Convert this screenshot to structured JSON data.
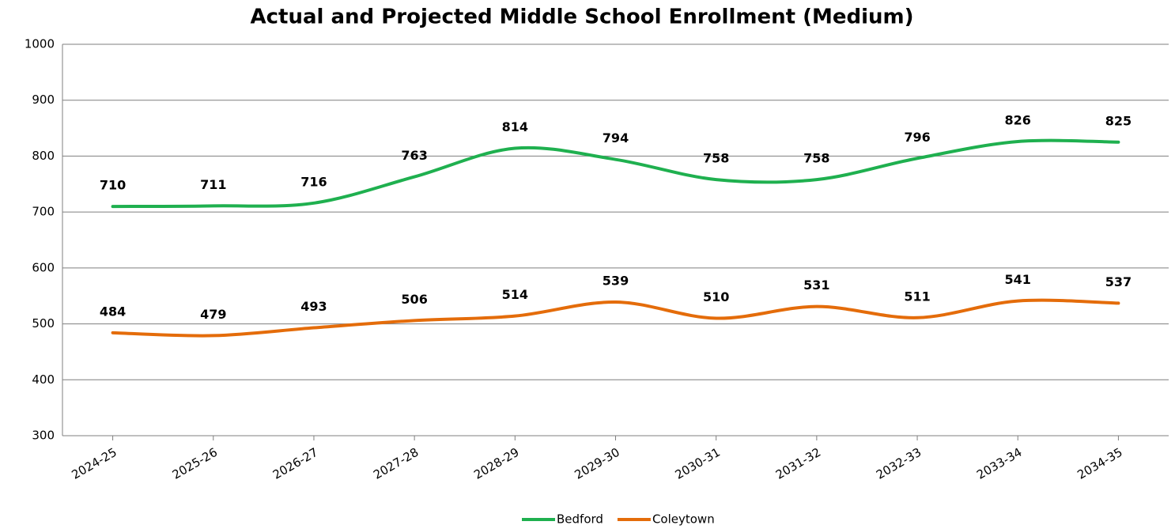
{
  "chart_data": {
    "type": "line",
    "title": "Actual and Projected Middle School Enrollment (Medium)",
    "categories": [
      "2024-25",
      "2025-26",
      "2026-27",
      "2027-28",
      "2028-29",
      "2029-30",
      "2030-31",
      "2031-32",
      "2032-33",
      "2033-34",
      "2034-35"
    ],
    "series": [
      {
        "name": "Bedford",
        "color": "#1fb04f",
        "values": [
          710,
          711,
          716,
          763,
          814,
          794,
          758,
          758,
          796,
          826,
          825
        ]
      },
      {
        "name": "Coleytown",
        "color": "#e46c0a",
        "values": [
          484,
          479,
          493,
          506,
          514,
          539,
          510,
          531,
          511,
          541,
          537
        ]
      }
    ],
    "ylim": [
      300,
      1000
    ],
    "yticks": [
      300,
      400,
      500,
      600,
      700,
      800,
      900,
      1000
    ],
    "grid": true,
    "smooth": true,
    "legend": "bottom"
  }
}
